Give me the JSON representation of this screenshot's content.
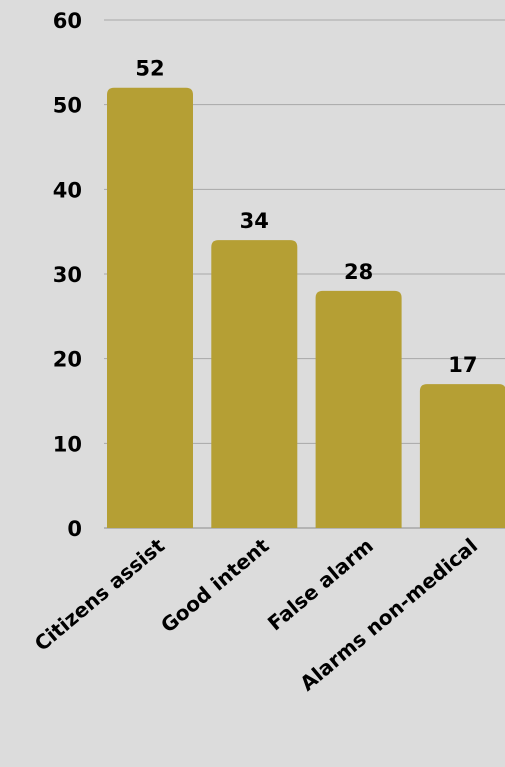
{
  "chart_data": {
    "type": "bar",
    "categories": [
      "Citizens assist",
      "Good intent",
      "False alarm",
      "Alarms non-medical"
    ],
    "values": [
      52,
      34,
      28,
      17
    ],
    "value_labels": [
      "52",
      "34",
      "28",
      "17"
    ],
    "title": "",
    "xlabel": "",
    "ylabel": "",
    "ylim": [
      0,
      60
    ],
    "yticks": [
      0,
      10,
      20,
      30,
      40,
      50,
      60
    ],
    "ytick_labels": [
      "0",
      "10",
      "20",
      "30",
      "40",
      "50",
      "60"
    ],
    "grid": true,
    "legend": "none",
    "bar_color": "#b59f34",
    "background_color": "#dcdcdc",
    "grid_color": "#a8a8a8"
  }
}
